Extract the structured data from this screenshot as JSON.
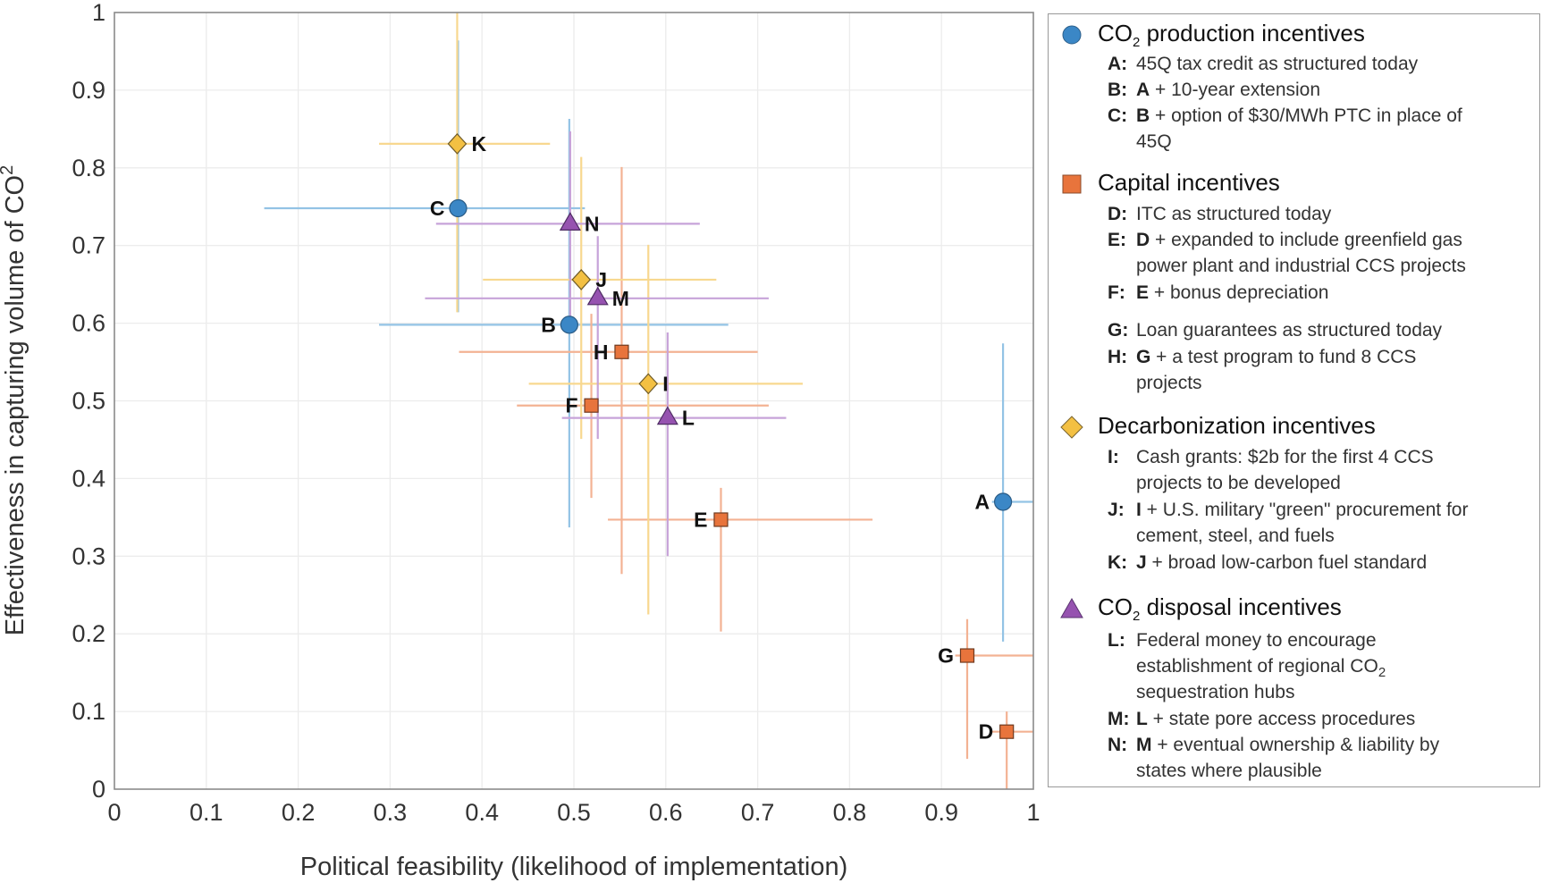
{
  "chart_data": {
    "type": "scatter",
    "title": "",
    "xlabel": "Political feasibility (likelihood of implementation)",
    "ylabel": "Effectiveness in capturing volume of CO",
    "ylabel_subscript": "2",
    "xlim": [
      0,
      1
    ],
    "ylim": [
      0,
      1
    ],
    "xticks": [
      "0",
      "0.1",
      "0.2",
      "0.3",
      "0.4",
      "0.5",
      "0.6",
      "0.7",
      "0.8",
      "0.9",
      "1"
    ],
    "yticks": [
      "0",
      "0.1",
      "0.2",
      "0.3",
      "0.4",
      "0.5",
      "0.6",
      "0.7",
      "0.8",
      "0.9",
      "1"
    ],
    "grid": true,
    "legend_position": "right",
    "series": [
      {
        "name": "CO2 production incentives",
        "marker": "circle",
        "color": "#3b87c6",
        "bar_color": "#93c3e5",
        "points": [
          {
            "label": "A",
            "x": 0.967,
            "y": 0.37,
            "xerr": [
              0.955,
              1.0
            ],
            "yerr": [
              0.19,
              0.574
            ]
          },
          {
            "label": "B",
            "x": 0.495,
            "y": 0.598,
            "xerr": [
              0.288,
              0.668
            ],
            "yerr": [
              0.337,
              0.863
            ]
          },
          {
            "label": "C",
            "x": 0.374,
            "y": 0.748,
            "xerr": [
              0.163,
              0.512
            ],
            "yerr": [
              0.614,
              0.964
            ]
          }
        ]
      },
      {
        "name": "Capital incentives",
        "marker": "square",
        "color": "#e8743c",
        "bar_color": "#f3b293",
        "points": [
          {
            "label": "D",
            "x": 0.971,
            "y": 0.074,
            "xerr": [
              0.955,
              1.0
            ],
            "yerr": [
              0.0,
              0.1
            ]
          },
          {
            "label": "E",
            "x": 0.66,
            "y": 0.347,
            "xerr": [
              0.537,
              0.825
            ],
            "yerr": [
              0.203,
              0.388
            ]
          },
          {
            "label": "F",
            "x": 0.519,
            "y": 0.494,
            "xerr": [
              0.438,
              0.712
            ],
            "yerr": [
              0.375,
              0.612
            ]
          },
          {
            "label": "G",
            "x": 0.928,
            "y": 0.172,
            "xerr": [
              0.915,
              1.0
            ],
            "yerr": [
              0.039,
              0.219
            ]
          },
          {
            "label": "H",
            "x": 0.552,
            "y": 0.563,
            "xerr": [
              0.375,
              0.7
            ],
            "yerr": [
              0.277,
              0.801
            ]
          }
        ]
      },
      {
        "name": "Decarbonization incentives",
        "marker": "diamond",
        "color": "#f3c043",
        "bar_color": "#f8d88f",
        "points": [
          {
            "label": "I",
            "x": 0.581,
            "y": 0.522,
            "xerr": [
              0.451,
              0.749
            ],
            "yerr": [
              0.225,
              0.701
            ]
          },
          {
            "label": "J",
            "x": 0.508,
            "y": 0.656,
            "xerr": [
              0.401,
              0.655
            ],
            "yerr": [
              0.451,
              0.814
            ]
          },
          {
            "label": "K",
            "x": 0.373,
            "y": 0.831,
            "xerr": [
              0.288,
              0.474
            ],
            "yerr": [
              0.614,
              1.0
            ]
          }
        ]
      },
      {
        "name": "CO2 disposal incentives",
        "marker": "triangle",
        "color": "#9653b0",
        "bar_color": "#c7a3d9",
        "points": [
          {
            "label": "L",
            "x": 0.602,
            "y": 0.478,
            "xerr": [
              0.487,
              0.731
            ],
            "yerr": [
              0.3,
              0.588
            ]
          },
          {
            "label": "M",
            "x": 0.526,
            "y": 0.632,
            "xerr": [
              0.338,
              0.712
            ],
            "yerr": [
              0.451,
              0.712
            ]
          },
          {
            "label": "N",
            "x": 0.496,
            "y": 0.728,
            "xerr": [
              0.35,
              0.637
            ],
            "yerr": [
              0.6,
              0.847
            ]
          }
        ]
      }
    ]
  },
  "legend": {
    "groups": [
      {
        "title": "CO",
        "title_sub": "2",
        "title_rest": " production incentives",
        "items": [
          {
            "key": "A",
            "ref": "",
            "text": "45Q tax credit as structured today",
            "cont": ""
          },
          {
            "key": "B",
            "ref": "A",
            "text": " + 10-year extension",
            "cont": ""
          },
          {
            "key": "C",
            "ref": "B",
            "text": " + option of $30/MWh PTC in place of",
            "cont": "45Q"
          }
        ]
      },
      {
        "title": "Capital incentives",
        "items": [
          {
            "key": "D",
            "ref": "",
            "text": "ITC as structured today",
            "cont": ""
          },
          {
            "key": "E",
            "ref": "D",
            "text": " + expanded to include greenfield gas",
            "cont": "power plant and industrial CCS projects"
          },
          {
            "key": "F",
            "ref": "E",
            "text": " + bonus depreciation",
            "cont": ""
          },
          {
            "key": "G",
            "ref": "",
            "text": "Loan guarantees as structured today",
            "cont": ""
          },
          {
            "key": "H",
            "ref": "G",
            "text": " + a test program to fund 8 CCS",
            "cont": "projects"
          }
        ]
      },
      {
        "title": "Decarbonization incentives",
        "items": [
          {
            "key": "I",
            "ref": "",
            "text": "Cash grants: $2b for the first 4 CCS",
            "cont": "projects to be developed"
          },
          {
            "key": "J",
            "ref": "I",
            "text": " + U.S. military \"green\" procurement for",
            "cont": "cement, steel, and fuels"
          },
          {
            "key": "K",
            "ref": "J",
            "text": " + broad low-carbon fuel standard",
            "cont": ""
          }
        ]
      },
      {
        "title": "CO",
        "title_sub": "2",
        "title_rest": " disposal incentives",
        "items": [
          {
            "key": "L",
            "ref": "",
            "text": "Federal money to encourage",
            "cont": "establishment of regional CO",
            "cont_sub": "2",
            "cont2": "sequestration hubs"
          },
          {
            "key": "M",
            "ref": "L",
            "text": " + state pore access procedures",
            "cont": ""
          },
          {
            "key": "N",
            "ref": "M",
            "text": " + eventual ownership & liability by",
            "cont": "states where plausible"
          }
        ]
      }
    ]
  }
}
